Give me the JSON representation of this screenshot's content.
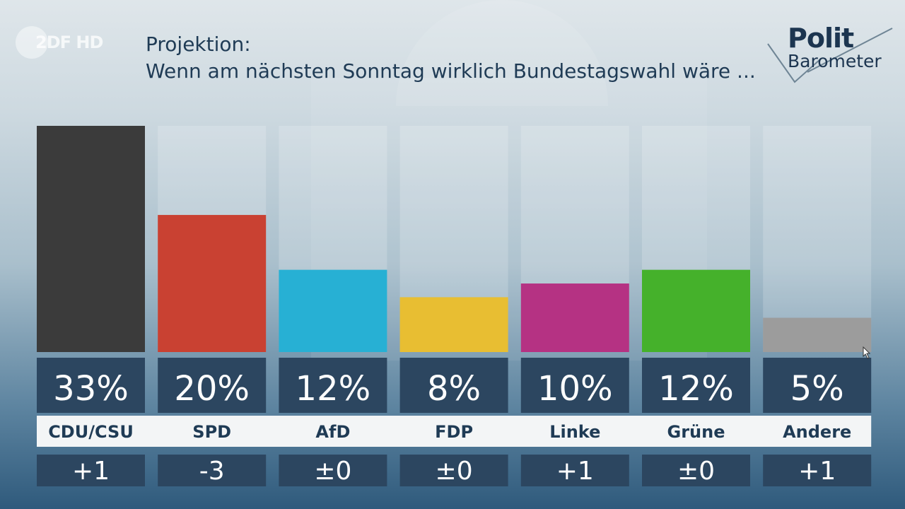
{
  "header": {
    "channel_logo_text": "2DF HD",
    "title_line1": "Projektion:",
    "title_line2": "Wenn am nächsten Sonntag wirklich Bundestagswahl wäre ...",
    "brand_line1": "Polit",
    "brand_line2": "Barometer"
  },
  "chart_data": {
    "type": "bar",
    "title": "Projektion: Wenn am nächsten Sonntag wirklich Bundestagswahl wäre ...",
    "ylim": [
      0,
      33
    ],
    "unit": "%",
    "categories": [
      "CDU/CSU",
      "SPD",
      "AfD",
      "FDP",
      "Linke",
      "Grüne",
      "Andere"
    ],
    "values": [
      33,
      20,
      12,
      8,
      10,
      12,
      5
    ],
    "value_labels": [
      "33%",
      "20%",
      "12%",
      "8%",
      "10%",
      "12%",
      "5%"
    ],
    "changes": [
      "+1",
      "-3",
      "±0",
      "±0",
      "+1",
      "±0",
      "+1"
    ],
    "colors": [
      "#3b3b3b",
      "#c94132",
      "#27b0d4",
      "#e8be32",
      "#b53283",
      "#45b12b",
      "#9c9c9c"
    ]
  },
  "colors": {
    "label_box": "#2c4660",
    "category_strip": "#f3f5f6",
    "category_text": "#1f3b55",
    "title_text": "#1f3b55"
  }
}
